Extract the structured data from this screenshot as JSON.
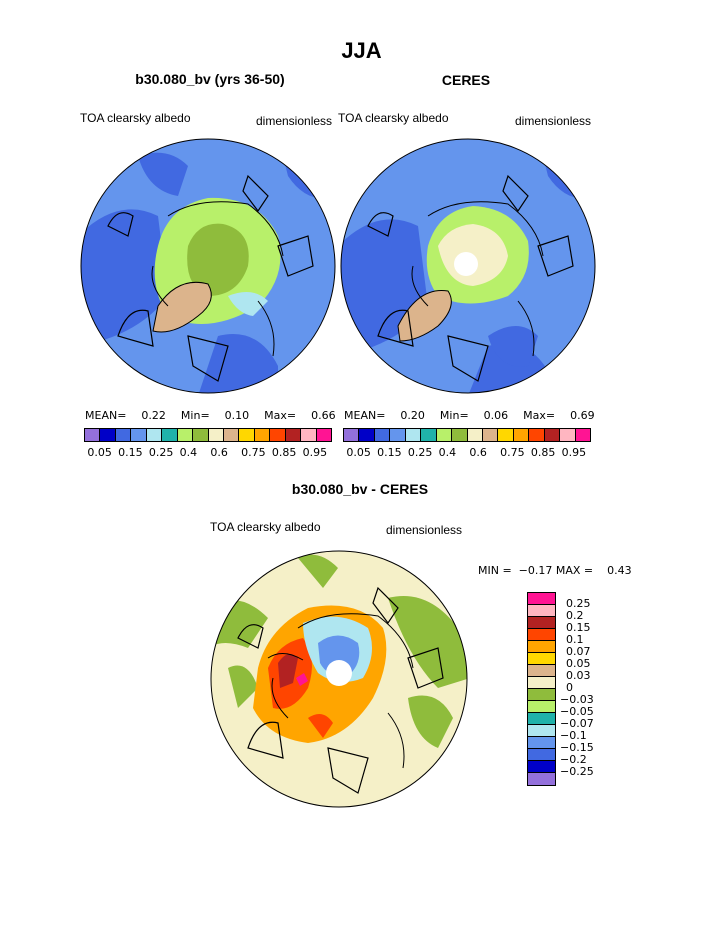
{
  "page": {
    "title": "JJA"
  },
  "panels": [
    {
      "name": "b30.080_bv (yrs 36-50)",
      "left_label": "TOA clearsky albedo",
      "right_label": "dimensionless",
      "stats": {
        "mean_label": "MEAN=",
        "mean": "0.22",
        "min_label": "Min=",
        "min": "0.10",
        "max_label": "Max=",
        "max": "0.66"
      }
    },
    {
      "name": "CERES",
      "left_label": "TOA clearsky albedo",
      "right_label": "dimensionless",
      "stats": {
        "mean_label": "MEAN=",
        "mean": "0.20",
        "min_label": "Min=",
        "min": "0.06",
        "max_label": "Max=",
        "max": "0.69"
      }
    }
  ],
  "albedo_colorbar": {
    "colors": [
      "#9370db",
      "#0000c8",
      "#4169e1",
      "#6495ed",
      "#afe6f0",
      "#20b2aa",
      "#b8f06a",
      "#8fbc3c",
      "#f5f0c8",
      "#dcb48c",
      "#ffd700",
      "#ffa500",
      "#ff4500",
      "#b22222",
      "#ffb6c1",
      "#ff1493"
    ],
    "tick_labels": [
      "0.05",
      "0.15",
      "0.25",
      "0.4",
      "0.6",
      "0.75",
      "0.85",
      "0.95"
    ]
  },
  "difference": {
    "title": "b30.080_bv - CERES",
    "left_label": "TOA clearsky albedo",
    "right_label": "dimensionless",
    "stats_text": "MIN =  −0.17 MAX =    0.43",
    "colorbar": {
      "colors_top_to_bottom": [
        "#ff1493",
        "#ffb6c1",
        "#b22222",
        "#ff4500",
        "#ffa500",
        "#ffd700",
        "#dcb48c",
        "#f5f0c8",
        "#8fbc3c",
        "#b8f06a",
        "#20b2aa",
        "#afe6f0",
        "#6495ed",
        "#4169e1",
        "#0000c8",
        "#9370db"
      ],
      "tick_labels": [
        "0.25",
        "0.2",
        "0.15",
        "0.1",
        "0.07",
        "0.05",
        "0.03",
        "0",
        "−0.03",
        "−0.05",
        "−0.07",
        "−0.1",
        "−0.15",
        "−0.2",
        "−0.25"
      ]
    }
  }
}
